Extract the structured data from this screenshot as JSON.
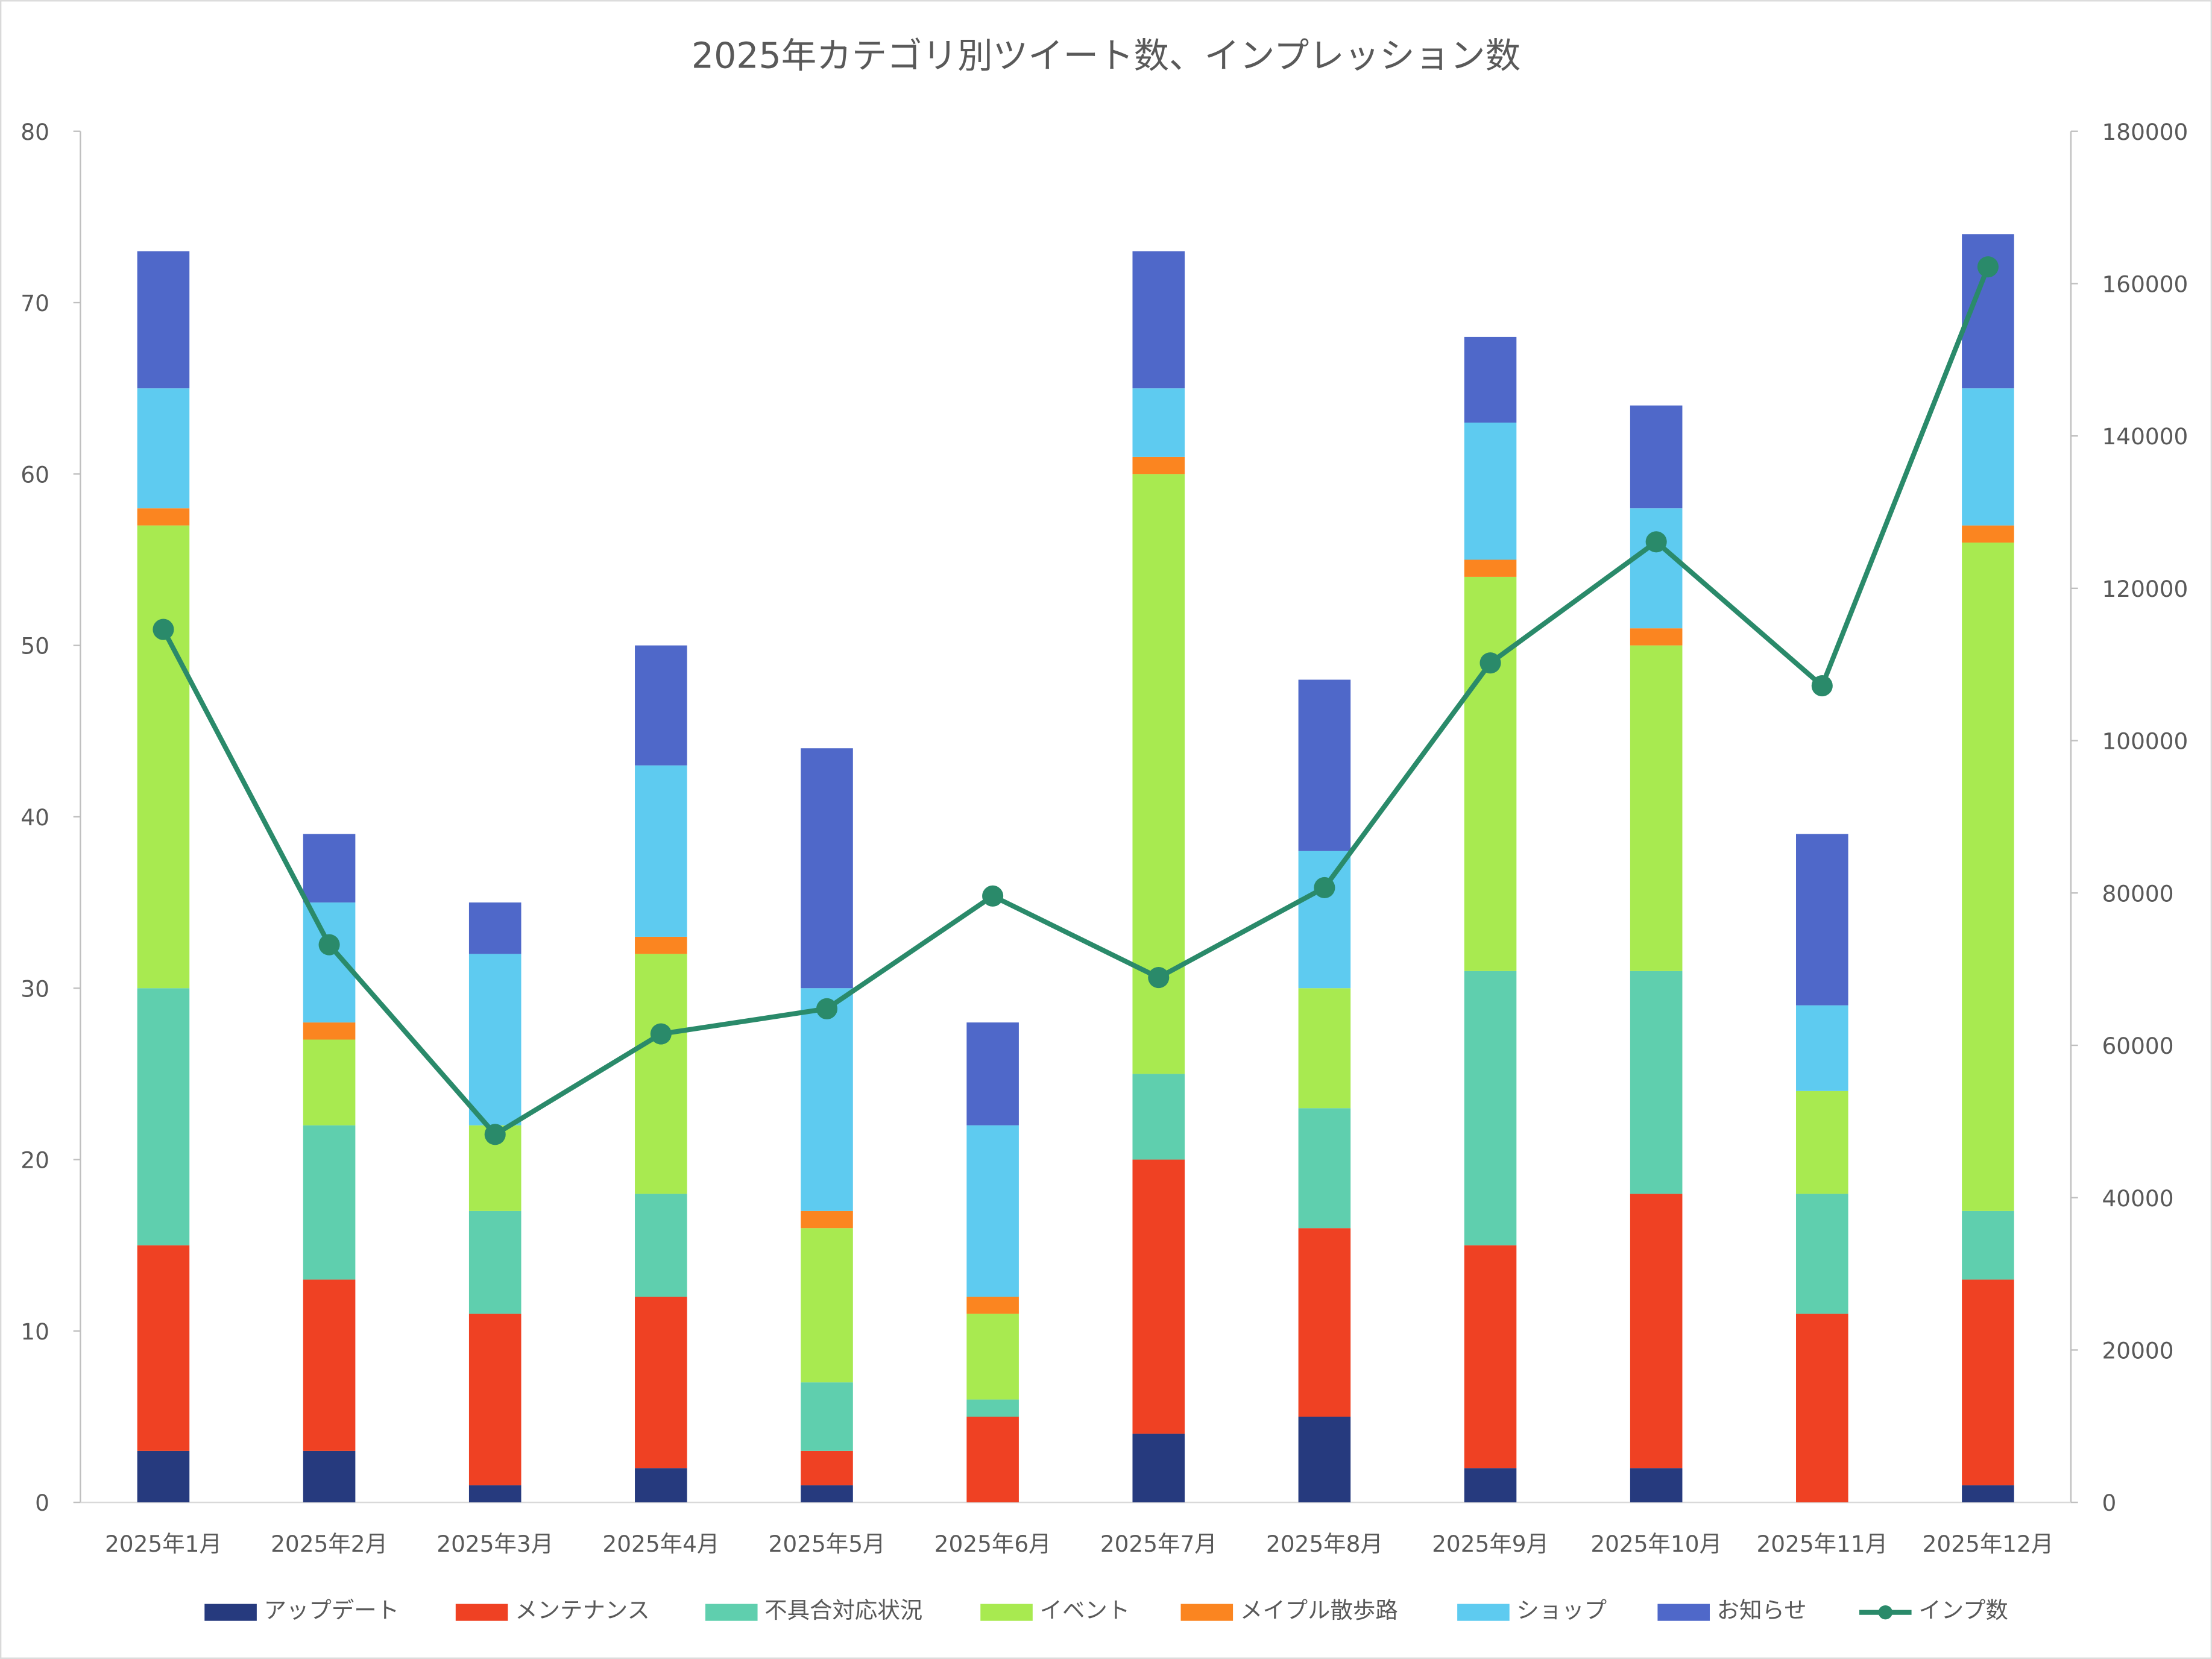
{
  "chart_data": {
    "type": "bar",
    "title": "2025年カテゴリ別ツイート数、インプレッション数",
    "categories": [
      "2025年1月",
      "2025年2月",
      "2025年3月",
      "2025年4月",
      "2025年5月",
      "2025年6月",
      "2025年7月",
      "2025年8月",
      "2025年9月",
      "2025年10月",
      "2025年11月",
      "2025年12月"
    ],
    "stacked": true,
    "series": [
      {
        "name": "アップデート",
        "color": "#263a7e",
        "values": [
          3,
          3,
          1,
          2,
          1,
          0,
          4,
          5,
          2,
          2,
          0,
          1
        ]
      },
      {
        "name": "メンテナンス",
        "color": "#ef4123",
        "values": [
          12,
          10,
          10,
          10,
          2,
          5,
          16,
          11,
          13,
          16,
          11,
          12
        ]
      },
      {
        "name": "不具合対応状況",
        "color": "#5fcfae",
        "values": [
          15,
          9,
          6,
          6,
          4,
          1,
          5,
          7,
          16,
          13,
          7,
          4
        ]
      },
      {
        "name": "イベント",
        "color": "#a8ea50",
        "values": [
          27,
          5,
          5,
          14,
          9,
          5,
          35,
          7,
          23,
          19,
          6,
          39
        ]
      },
      {
        "name": "メイプル散歩路",
        "color": "#fb8520",
        "values": [
          1,
          1,
          0,
          1,
          1,
          1,
          1,
          0,
          1,
          1,
          0,
          1
        ]
      },
      {
        "name": "ショップ",
        "color": "#5ecbf0",
        "values": [
          7,
          7,
          10,
          10,
          13,
          10,
          4,
          8,
          8,
          7,
          5,
          8
        ]
      },
      {
        "name": "お知らせ",
        "color": "#4f68c9",
        "values": [
          8,
          4,
          3,
          7,
          14,
          6,
          8,
          10,
          5,
          6,
          10,
          9
        ]
      }
    ],
    "line_series": {
      "name": "インプ数",
      "color": "#2a8a6a",
      "axis": "right",
      "values": [
        114600,
        73200,
        48300,
        61500,
        64800,
        79600,
        68900,
        80700,
        110200,
        126100,
        107200,
        162200
      ]
    },
    "ylim": [
      0,
      80
    ],
    "yticks": [
      0,
      10,
      20,
      30,
      40,
      50,
      60,
      70,
      80
    ],
    "y2lim": [
      0,
      180000
    ],
    "y2ticks": [
      0,
      20000,
      40000,
      60000,
      80000,
      100000,
      120000,
      140000,
      160000,
      180000
    ],
    "xlabel": "",
    "ylabel": "",
    "grid": false,
    "legend": "bottom"
  }
}
